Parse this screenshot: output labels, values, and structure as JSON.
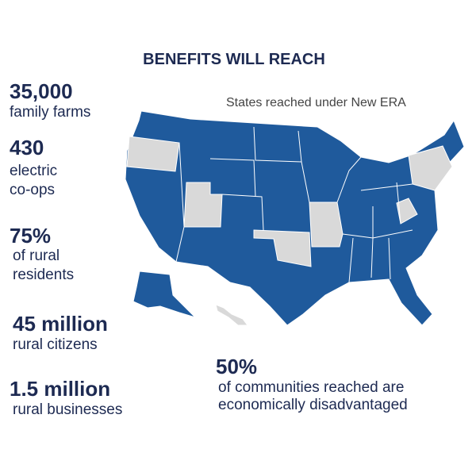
{
  "header": {
    "title": "BENEFITS WILL REACH"
  },
  "map": {
    "caption": "States reached under New ERA"
  },
  "stats": [
    {
      "figure": "35,000",
      "label": "family farms"
    },
    {
      "figure": "430",
      "label": "electric co-ops"
    },
    {
      "figure": "75%",
      "label": "of rural residents"
    },
    {
      "figure": "45 million",
      "label": "rural citizens"
    },
    {
      "figure": "1.5 million",
      "label": "rural businesses"
    },
    {
      "figure": "50%",
      "label": "of communities reached are economically disadvantaged"
    }
  ]
}
